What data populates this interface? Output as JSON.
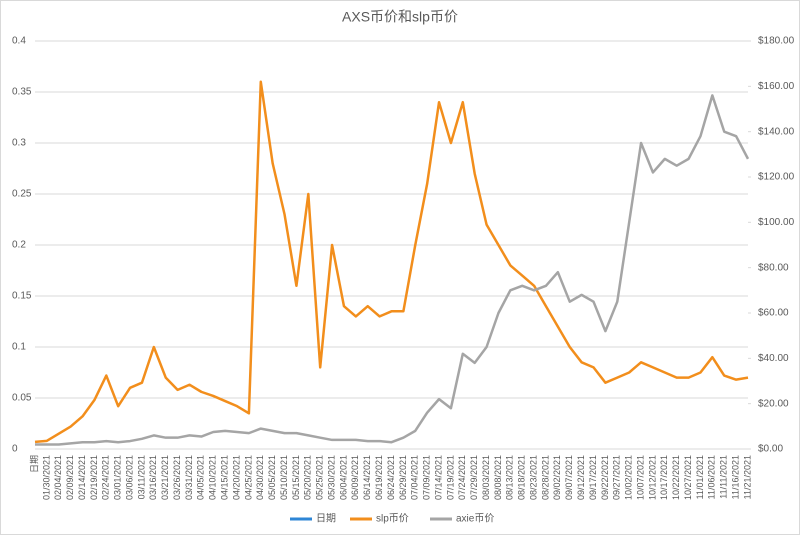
{
  "chart_data": {
    "type": "line",
    "title": "AXS币价和slp币价",
    "categories": [
      "日期",
      "01/30/2021",
      "02/04/2021",
      "02/09/2021",
      "02/14/2021",
      "02/19/2021",
      "02/24/2021",
      "03/01/2021",
      "03/06/2021",
      "03/11/2021",
      "03/16/2021",
      "03/21/2021",
      "03/26/2021",
      "03/31/2021",
      "04/05/2021",
      "04/10/2021",
      "04/15/2021",
      "04/20/2021",
      "04/25/2021",
      "04/30/2021",
      "05/05/2021",
      "05/10/2021",
      "05/15/2021",
      "05/20/2021",
      "05/25/2021",
      "05/30/2021",
      "06/04/2021",
      "06/09/2021",
      "06/14/2021",
      "06/19/2021",
      "06/24/2021",
      "06/29/2021",
      "07/04/2021",
      "07/09/2021",
      "07/14/2021",
      "07/19/2021",
      "07/24/2021",
      "07/29/2021",
      "08/03/2021",
      "08/08/2021",
      "08/13/2021",
      "08/18/2021",
      "08/23/2021",
      "08/28/2021",
      "09/02/2021",
      "09/07/2021",
      "09/12/2021",
      "09/17/2021",
      "09/22/2021",
      "09/27/2021",
      "10/02/2021",
      "10/07/2021",
      "10/12/2021",
      "10/17/2021",
      "10/22/2021",
      "10/27/2021",
      "11/01/2021",
      "11/06/2021",
      "11/11/2021",
      "11/16/2021",
      "11/21/2021"
    ],
    "series": [
      {
        "name": "日期",
        "color": "#2e86d6",
        "values": [
          null,
          null,
          null,
          null,
          null,
          null,
          null,
          null,
          null,
          null,
          null,
          null,
          null,
          null,
          null,
          null,
          null,
          null,
          null,
          null,
          null,
          null,
          null,
          null,
          null,
          null,
          null,
          null,
          null,
          null,
          null,
          null,
          null,
          null,
          null,
          null,
          null,
          null,
          null,
          null,
          null,
          null,
          null,
          null,
          null,
          null,
          null,
          null,
          null,
          null,
          null,
          null,
          null,
          null,
          null,
          null,
          null,
          null,
          null,
          null,
          null
        ]
      },
      {
        "name": "slp币价",
        "color": "#f28e1c",
        "values": [
          0.007,
          0.008,
          0.015,
          0.022,
          0.032,
          0.048,
          0.072,
          0.042,
          0.06,
          0.065,
          0.1,
          0.07,
          0.058,
          0.063,
          0.056,
          0.052,
          0.047,
          0.042,
          0.035,
          0.36,
          0.28,
          0.23,
          0.16,
          0.25,
          0.08,
          0.2,
          0.14,
          0.13,
          0.14,
          0.13,
          0.135,
          0.135,
          0.2,
          0.26,
          0.34,
          0.3,
          0.34,
          0.27,
          0.22,
          0.2,
          0.18,
          0.17,
          0.16,
          0.14,
          0.12,
          0.1,
          0.085,
          0.08,
          0.065,
          0.07,
          0.075,
          0.085,
          0.08,
          0.075,
          0.07,
          0.07,
          0.075,
          0.09,
          0.072,
          0.068,
          0.07
        ]
      },
      {
        "name": "axie币价",
        "color": "#a5a5a5",
        "axis": "y2",
        "values": [
          2,
          2,
          2,
          2.5,
          3,
          3,
          3.5,
          3,
          3.5,
          4.5,
          6,
          5,
          5,
          6,
          5.5,
          7.5,
          8,
          7.5,
          7,
          9,
          8,
          7,
          7,
          6,
          5,
          4,
          4,
          4,
          3.5,
          3.5,
          3,
          5,
          8,
          16,
          22,
          18,
          42,
          38,
          45,
          60,
          70,
          72,
          70,
          72,
          78,
          65,
          68,
          65,
          52,
          65,
          100,
          135,
          122,
          128,
          125,
          128,
          138,
          156,
          140,
          138,
          128
        ]
      }
    ],
    "ylim": [
      0,
      0.4
    ],
    "yticks": [
      0,
      0.05,
      0.1,
      0.15,
      0.2,
      0.25,
      0.3,
      0.35,
      0.4
    ],
    "y2lim": [
      0,
      180
    ],
    "y2ticks": [
      {
        "value": 0,
        "label": "$0.00"
      },
      {
        "value": 20,
        "label": "$20.00"
      },
      {
        "value": 40,
        "label": "$40.00"
      },
      {
        "value": 60,
        "label": "$60.00"
      },
      {
        "value": 80,
        "label": "$80.00"
      },
      {
        "value": 100,
        "label": "$100.00"
      },
      {
        "value": 120,
        "label": "$120.00"
      },
      {
        "value": 140,
        "label": "$140.00"
      },
      {
        "value": 160,
        "label": "$160.00"
      },
      {
        "value": 180,
        "label": "$180.00"
      }
    ],
    "grid": true,
    "legend": "bottom"
  }
}
